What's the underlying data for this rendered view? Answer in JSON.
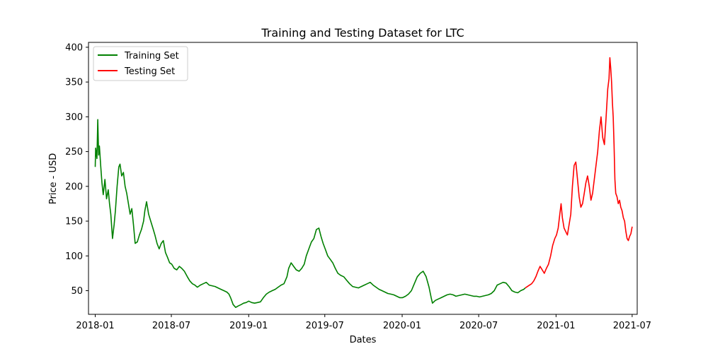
{
  "chart_data": {
    "type": "line",
    "title": "Training and Testing Dataset for LTC",
    "xlabel": "Dates",
    "ylabel": "Price - USD",
    "xlim": [
      "2017-12-16",
      "2021-07-13"
    ],
    "ylim": [
      16,
      407
    ],
    "grid": false,
    "legend_position": "top-left",
    "x_ticks": [
      {
        "date": "2018-01-01",
        "label": "2018-01"
      },
      {
        "date": "2018-07-01",
        "label": "2018-07"
      },
      {
        "date": "2019-01-01",
        "label": "2019-01"
      },
      {
        "date": "2019-07-01",
        "label": "2019-07"
      },
      {
        "date": "2020-01-01",
        "label": "2020-01"
      },
      {
        "date": "2020-07-01",
        "label": "2020-07"
      },
      {
        "date": "2021-01-01",
        "label": "2021-01"
      },
      {
        "date": "2021-07-01",
        "label": "2021-07"
      }
    ],
    "y_ticks": [
      50,
      100,
      150,
      200,
      250,
      300,
      350,
      400
    ],
    "series": [
      {
        "name": "Training Set",
        "color": "#008000",
        "x": [
          "2018-01-01",
          "2018-01-02",
          "2018-01-05",
          "2018-01-07",
          "2018-01-09",
          "2018-01-11",
          "2018-01-14",
          "2018-01-17",
          "2018-01-20",
          "2018-01-24",
          "2018-01-28",
          "2018-02-01",
          "2018-02-04",
          "2018-02-07",
          "2018-02-11",
          "2018-02-15",
          "2018-02-18",
          "2018-02-22",
          "2018-02-26",
          "2018-03-01",
          "2018-03-05",
          "2018-03-09",
          "2018-03-13",
          "2018-03-17",
          "2018-03-21",
          "2018-03-25",
          "2018-03-29",
          "2018-04-02",
          "2018-04-06",
          "2018-04-11",
          "2018-04-16",
          "2018-04-21",
          "2018-04-26",
          "2018-04-29",
          "2018-05-03",
          "2018-05-08",
          "2018-05-13",
          "2018-05-18",
          "2018-05-23",
          "2018-05-28",
          "2018-06-02",
          "2018-06-07",
          "2018-06-12",
          "2018-06-17",
          "2018-06-22",
          "2018-06-27",
          "2018-07-02",
          "2018-07-08",
          "2018-07-14",
          "2018-07-20",
          "2018-07-26",
          "2018-08-01",
          "2018-08-08",
          "2018-08-14",
          "2018-08-20",
          "2018-08-26",
          "2018-09-01",
          "2018-09-08",
          "2018-09-15",
          "2018-09-22",
          "2018-09-29",
          "2018-10-06",
          "2018-10-13",
          "2018-10-20",
          "2018-10-27",
          "2018-11-03",
          "2018-11-10",
          "2018-11-15",
          "2018-11-19",
          "2018-11-25",
          "2018-12-01",
          "2018-12-07",
          "2018-12-14",
          "2018-12-20",
          "2018-12-26",
          "2019-01-01",
          "2019-01-08",
          "2019-01-15",
          "2019-01-22",
          "2019-01-29",
          "2019-02-05",
          "2019-02-12",
          "2019-02-19",
          "2019-02-26",
          "2019-03-05",
          "2019-03-12",
          "2019-03-19",
          "2019-03-26",
          "2019-04-02",
          "2019-04-06",
          "2019-04-12",
          "2019-04-18",
          "2019-04-24",
          "2019-05-01",
          "2019-05-07",
          "2019-05-13",
          "2019-05-18",
          "2019-05-24",
          "2019-05-30",
          "2019-06-05",
          "2019-06-11",
          "2019-06-17",
          "2019-06-22",
          "2019-06-27",
          "2019-07-02",
          "2019-07-08",
          "2019-07-14",
          "2019-07-20",
          "2019-07-26",
          "2019-08-01",
          "2019-08-08",
          "2019-08-15",
          "2019-08-22",
          "2019-08-29",
          "2019-09-05",
          "2019-09-12",
          "2019-09-19",
          "2019-09-26",
          "2019-10-03",
          "2019-10-10",
          "2019-10-17",
          "2019-10-24",
          "2019-10-31",
          "2019-11-07",
          "2019-11-14",
          "2019-11-21",
          "2019-11-28",
          "2019-12-05",
          "2019-12-12",
          "2019-12-19",
          "2019-12-26",
          "2020-01-02",
          "2020-01-09",
          "2020-01-16",
          "2020-01-23",
          "2020-01-30",
          "2020-02-06",
          "2020-02-13",
          "2020-02-20",
          "2020-02-27",
          "2020-03-05",
          "2020-03-10",
          "2020-03-13",
          "2020-03-20",
          "2020-03-27",
          "2020-04-03",
          "2020-04-10",
          "2020-04-17",
          "2020-04-24",
          "2020-05-01",
          "2020-05-08",
          "2020-05-15",
          "2020-05-22",
          "2020-05-29",
          "2020-06-05",
          "2020-06-12",
          "2020-06-19",
          "2020-06-26",
          "2020-07-03",
          "2020-07-10",
          "2020-07-17",
          "2020-07-24",
          "2020-07-31",
          "2020-08-07",
          "2020-08-14",
          "2020-08-21",
          "2020-08-28",
          "2020-09-04",
          "2020-09-11",
          "2020-09-18",
          "2020-09-25",
          "2020-10-02",
          "2020-10-09",
          "2020-10-16",
          "2020-10-20"
        ],
        "values": [
          228,
          255,
          240,
          296,
          245,
          258,
          230,
          205,
          188,
          210,
          182,
          195,
          175,
          160,
          125,
          145,
          165,
          200,
          228,
          232,
          215,
          220,
          200,
          190,
          175,
          160,
          168,
          145,
          118,
          120,
          130,
          138,
          150,
          165,
          178,
          160,
          150,
          140,
          130,
          118,
          110,
          118,
          122,
          105,
          98,
          90,
          88,
          82,
          80,
          85,
          82,
          78,
          70,
          64,
          60,
          58,
          55,
          58,
          60,
          62,
          58,
          57,
          56,
          54,
          52,
          50,
          48,
          45,
          40,
          30,
          26,
          28,
          30,
          32,
          33,
          35,
          33,
          32,
          33,
          34,
          40,
          45,
          48,
          50,
          52,
          55,
          58,
          60,
          70,
          82,
          90,
          85,
          80,
          78,
          82,
          88,
          100,
          110,
          120,
          125,
          138,
          140,
          128,
          118,
          110,
          100,
          95,
          90,
          82,
          75,
          72,
          70,
          65,
          60,
          56,
          55,
          54,
          56,
          58,
          60,
          62,
          58,
          55,
          52,
          50,
          48,
          46,
          45,
          44,
          42,
          40,
          40,
          42,
          45,
          50,
          60,
          70,
          75,
          78,
          70,
          55,
          40,
          32,
          36,
          38,
          40,
          42,
          44,
          45,
          44,
          42,
          43,
          44,
          45,
          44,
          43,
          42,
          42,
          41,
          42,
          43,
          44,
          46,
          50,
          58,
          60,
          62,
          61,
          56,
          50,
          48,
          47,
          50,
          52,
          54
        ]
      },
      {
        "name": "Testing Set",
        "color": "#ff0000",
        "x": [
          "2020-10-20",
          "2020-10-25",
          "2020-10-30",
          "2020-11-04",
          "2020-11-09",
          "2020-11-14",
          "2020-11-19",
          "2020-11-24",
          "2020-11-29",
          "2020-12-04",
          "2020-12-09",
          "2020-12-14",
          "2020-12-19",
          "2020-12-24",
          "2020-12-29",
          "2021-01-02",
          "2021-01-06",
          "2021-01-10",
          "2021-01-13",
          "2021-01-16",
          "2021-01-20",
          "2021-01-24",
          "2021-01-28",
          "2021-02-01",
          "2021-02-05",
          "2021-02-09",
          "2021-02-13",
          "2021-02-17",
          "2021-02-21",
          "2021-02-25",
          "2021-03-01",
          "2021-03-05",
          "2021-03-09",
          "2021-03-13",
          "2021-03-17",
          "2021-03-21",
          "2021-03-25",
          "2021-03-29",
          "2021-04-02",
          "2021-04-06",
          "2021-04-10",
          "2021-04-14",
          "2021-04-18",
          "2021-04-22",
          "2021-04-26",
          "2021-04-30",
          "2021-05-04",
          "2021-05-07",
          "2021-05-09",
          "2021-05-11",
          "2021-05-13",
          "2021-05-15",
          "2021-05-17",
          "2021-05-19",
          "2021-05-21",
          "2021-05-23",
          "2021-05-26",
          "2021-05-29",
          "2021-06-01",
          "2021-06-04",
          "2021-06-07",
          "2021-06-10",
          "2021-06-13",
          "2021-06-16",
          "2021-06-19",
          "2021-06-22",
          "2021-06-25",
          "2021-06-28",
          "2021-07-01"
        ],
        "values": [
          54,
          56,
          58,
          60,
          64,
          70,
          78,
          85,
          80,
          75,
          82,
          88,
          100,
          115,
          125,
          130,
          140,
          160,
          175,
          155,
          140,
          135,
          130,
          145,
          160,
          200,
          230,
          235,
          210,
          185,
          170,
          175,
          190,
          205,
          215,
          200,
          180,
          190,
          210,
          230,
          250,
          280,
          300,
          270,
          260,
          300,
          340,
          355,
          385,
          370,
          350,
          320,
          300,
          260,
          210,
          190,
          185,
          175,
          180,
          170,
          165,
          155,
          150,
          135,
          125,
          122,
          128,
          132,
          142
        ]
      }
    ]
  }
}
